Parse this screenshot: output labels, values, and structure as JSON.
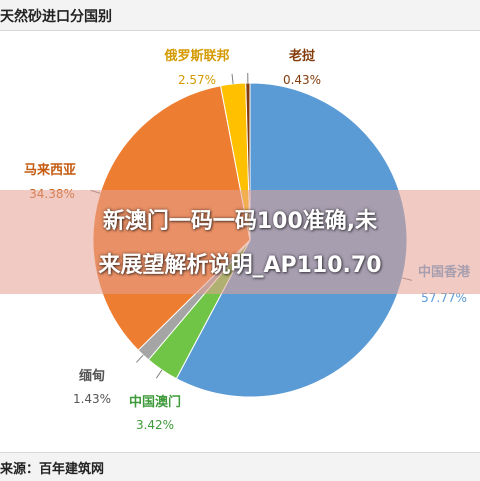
{
  "chart_data": {
    "type": "pie",
    "title": "天然砂进口分国别",
    "slices": [
      {
        "label": "中国香港",
        "value_label": "57.77%",
        "value": 57.77,
        "color": "#5b9bd5"
      },
      {
        "label": "中国澳门",
        "value_label": "3.42%",
        "value": 3.42,
        "color": "#70c547"
      },
      {
        "label": "缅甸",
        "value_label": "1.43%",
        "value": 1.43,
        "color": "#a5a5a5"
      },
      {
        "label": "马来西亚",
        "value_label": "34.38%",
        "value": 34.38,
        "color": "#ed7d31"
      },
      {
        "label": "俄罗斯联邦",
        "value_label": "2.57%",
        "value": 2.57,
        "color": "#ffc000"
      },
      {
        "label": "老挝",
        "value_label": "0.43%",
        "value": 0.43,
        "color": "#843c0c"
      }
    ]
  },
  "footer": {
    "source": "来源：百年建筑网"
  },
  "overlay": {
    "line1": "新澳门一码一码100准确,未",
    "line2": "来展望解析说明_AP110.70"
  }
}
